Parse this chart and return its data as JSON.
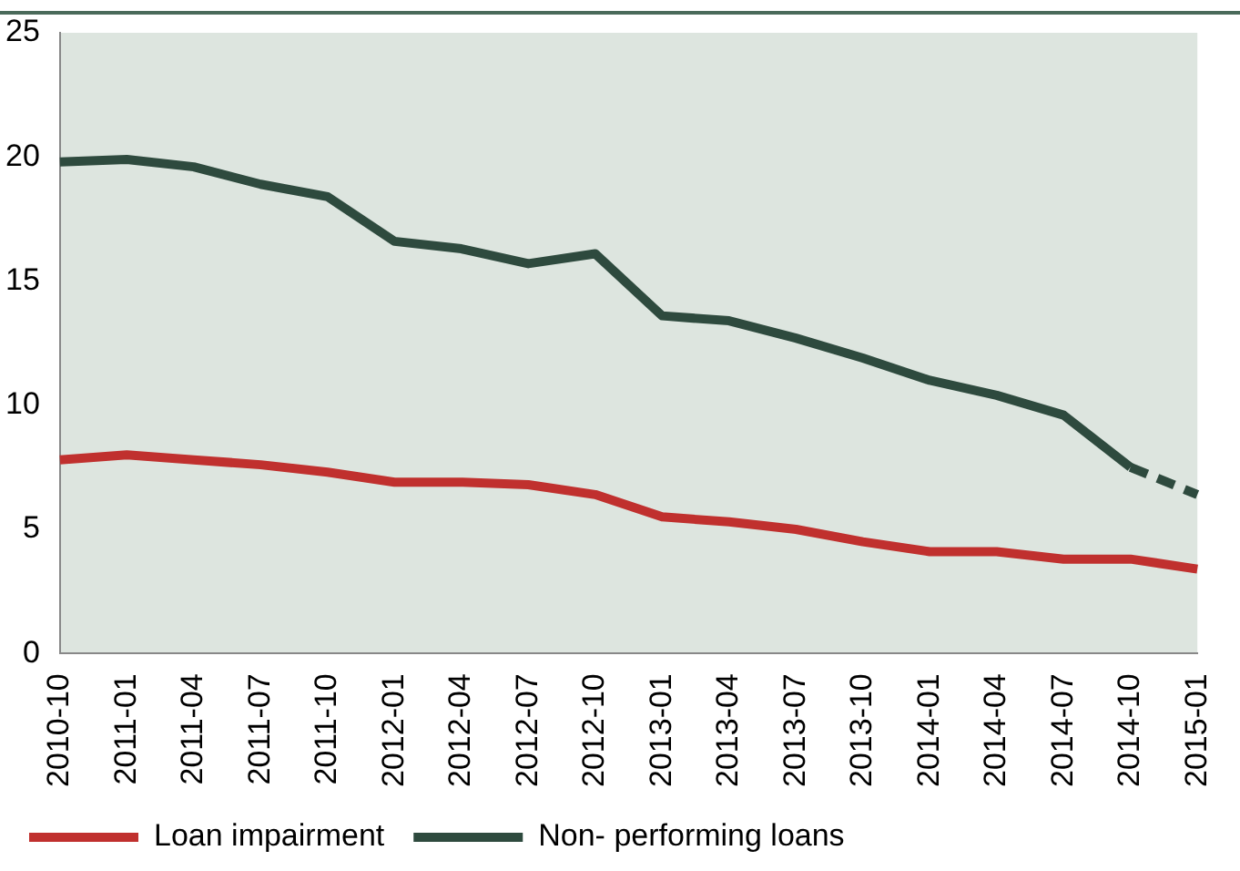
{
  "chart_data": {
    "type": "line",
    "categories": [
      "2010-10",
      "2011-01",
      "2011-04",
      "2011-07",
      "2011-10",
      "2012-01",
      "2012-04",
      "2012-07",
      "2012-10",
      "2013-01",
      "2013-04",
      "2013-07",
      "2013-10",
      "2014-01",
      "2014-04",
      "2014-07",
      "2014-10",
      "2015-01"
    ],
    "series": [
      {
        "name": "Loan impairment",
        "color": "#c0302e",
        "values": [
          7.8,
          8.0,
          7.8,
          7.6,
          7.3,
          6.9,
          6.9,
          6.8,
          6.4,
          5.5,
          5.3,
          5.0,
          4.5,
          4.1,
          4.1,
          3.8,
          3.8,
          3.4
        ]
      },
      {
        "name": "Non- performing loans",
        "color": "#2e4a3e",
        "values": [
          19.8,
          19.9,
          19.6,
          18.9,
          18.4,
          16.6,
          16.3,
          15.7,
          16.1,
          13.6,
          13.4,
          12.7,
          11.9,
          11.0,
          10.4,
          9.6,
          7.5,
          null
        ]
      },
      {
        "color": "#2e4a3e",
        "line_style": "dashed",
        "values": [
          null,
          null,
          null,
          null,
          null,
          null,
          null,
          null,
          null,
          null,
          null,
          null,
          null,
          null,
          null,
          null,
          7.5,
          6.4
        ]
      }
    ],
    "ylim": [
      0,
      25
    ],
    "yticks": [
      0,
      5,
      10,
      15,
      20,
      25
    ],
    "grid": false,
    "legend": "bottom",
    "marker": "none",
    "line_style": "solid"
  }
}
